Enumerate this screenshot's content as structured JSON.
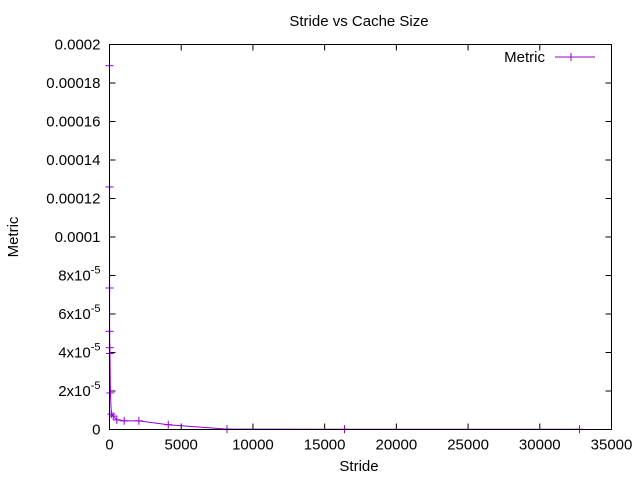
{
  "chart_data": {
    "type": "line",
    "title": "Stride vs Cache Size",
    "xlabel": "Stride",
    "ylabel": "Metric",
    "xlim": [
      0,
      35000
    ],
    "ylim": [
      0,
      0.0002
    ],
    "grid": false,
    "legend_position": "top-right",
    "x_ticks": [
      {
        "value": 0,
        "label": "0"
      },
      {
        "value": 5000,
        "label": "5000"
      },
      {
        "value": 10000,
        "label": "10000"
      },
      {
        "value": 15000,
        "label": "15000"
      },
      {
        "value": 20000,
        "label": "20000"
      },
      {
        "value": 25000,
        "label": "25000"
      },
      {
        "value": 30000,
        "label": "30000"
      },
      {
        "value": 35000,
        "label": "35000"
      }
    ],
    "y_ticks": [
      {
        "value": 0,
        "label": "0"
      },
      {
        "value": 2e-05,
        "label": "2x10",
        "exp": "-5"
      },
      {
        "value": 4e-05,
        "label": "4x10",
        "exp": "-5"
      },
      {
        "value": 6e-05,
        "label": "6x10",
        "exp": "-5"
      },
      {
        "value": 8e-05,
        "label": "8x10",
        "exp": "-5"
      },
      {
        "value": 0.0001,
        "label": "0.0001"
      },
      {
        "value": 0.00012,
        "label": "0.00012"
      },
      {
        "value": 0.00014,
        "label": "0.00014"
      },
      {
        "value": 0.00016,
        "label": "0.00016"
      },
      {
        "value": 0.00018,
        "label": "0.00018"
      },
      {
        "value": 0.0002,
        "label": "0.0002"
      }
    ],
    "series": [
      {
        "name": "Metric",
        "color": "#9400d3",
        "points": [
          {
            "x": 1,
            "y": 0.000189
          },
          {
            "x": 2,
            "y": 0.000126
          },
          {
            "x": 4,
            "y": 7.35e-05
          },
          {
            "x": 8,
            "y": 5.1e-05
          },
          {
            "x": 16,
            "y": 4.25e-05
          },
          {
            "x": 32,
            "y": 3.95e-05
          },
          {
            "x": 64,
            "y": 1.9e-05
          },
          {
            "x": 128,
            "y": 8e-06
          },
          {
            "x": 256,
            "y": 7e-06
          },
          {
            "x": 512,
            "y": 5e-06
          },
          {
            "x": 1024,
            "y": 4.5e-06
          },
          {
            "x": 2048,
            "y": 4.5e-06
          },
          {
            "x": 4096,
            "y": 2.5e-06
          },
          {
            "x": 8192,
            "y": 2e-07
          },
          {
            "x": 16384,
            "y": 1e-07
          },
          {
            "x": 32768,
            "y": 1e-07
          }
        ]
      }
    ]
  }
}
